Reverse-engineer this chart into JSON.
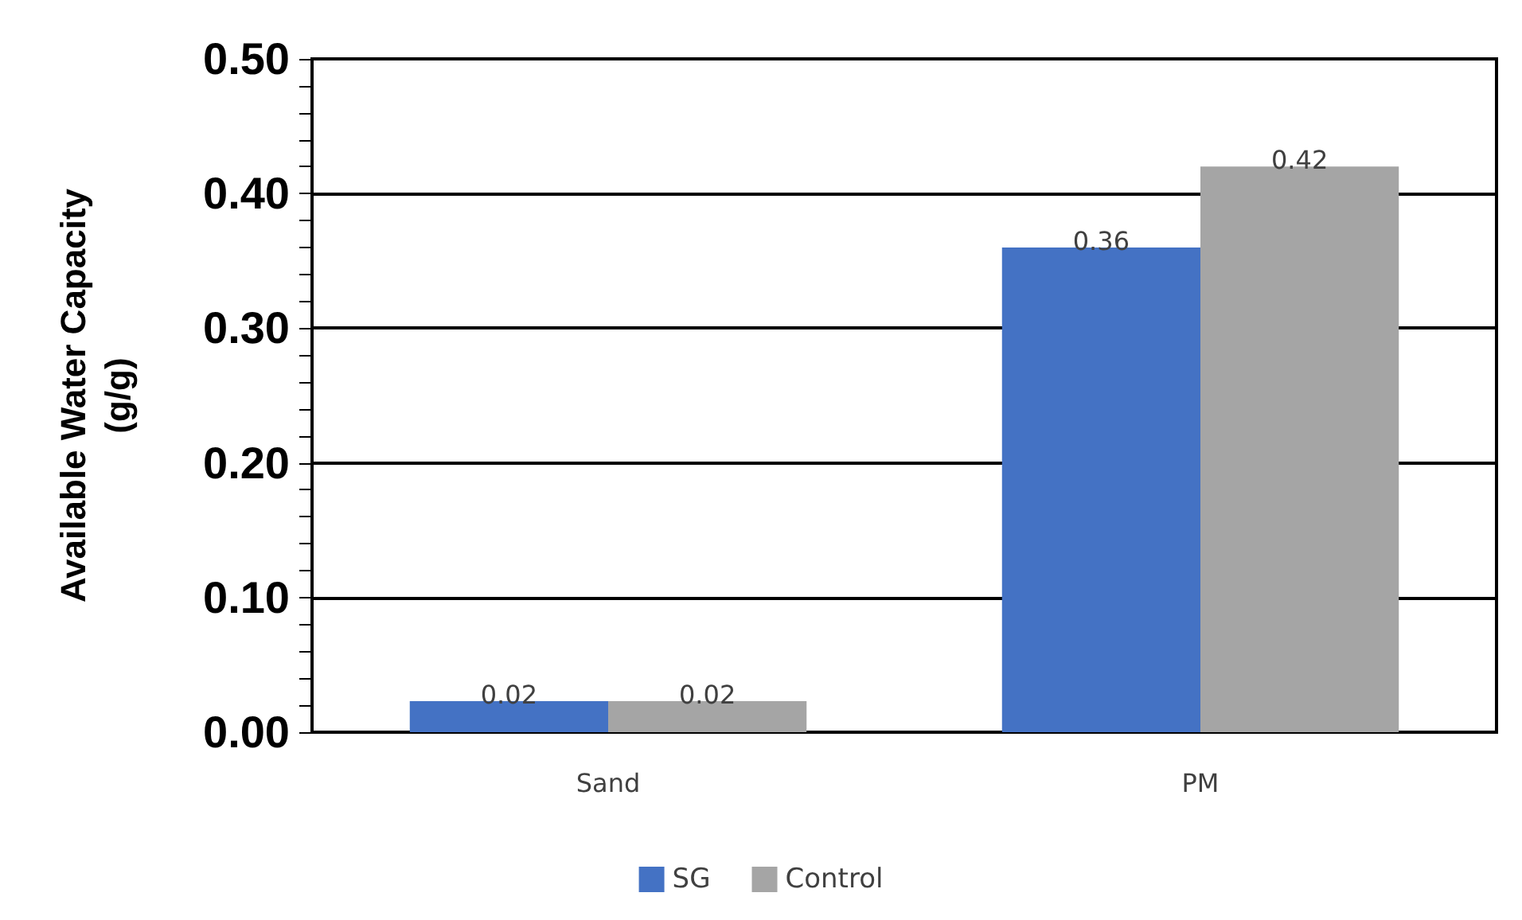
{
  "chart_data": {
    "type": "bar",
    "ylabel": "Available Water Capacity\n(g/g)",
    "categories": [
      "Sand",
      "PM"
    ],
    "series": [
      {
        "name": "SG",
        "color": "#4472c4",
        "values": [
          0.023,
          0.36
        ],
        "value_labels": [
          "0.02",
          "0.36"
        ]
      },
      {
        "name": "Control",
        "color": "#a5a5a5",
        "values": [
          0.023,
          0.42
        ],
        "value_labels": [
          "0.02",
          "0.42"
        ]
      }
    ],
    "ylim": [
      0,
      0.5
    ],
    "yticks": [
      {
        "value": 0,
        "label": "0.00"
      },
      {
        "value": 0.02,
        "label": null
      },
      {
        "value": 0.04,
        "label": null
      },
      {
        "value": 0.06,
        "label": null
      },
      {
        "value": 0.08,
        "label": null
      },
      {
        "value": 0.1,
        "label": "0.10"
      },
      {
        "value": 0.12,
        "label": null
      },
      {
        "value": 0.14,
        "label": null
      },
      {
        "value": 0.16,
        "label": null
      },
      {
        "value": 0.18,
        "label": null
      },
      {
        "value": 0.2,
        "label": "0.20"
      },
      {
        "value": 0.22,
        "label": null
      },
      {
        "value": 0.24,
        "label": null
      },
      {
        "value": 0.26,
        "label": null
      },
      {
        "value": 0.28,
        "label": null
      },
      {
        "value": 0.3,
        "label": "0.30"
      },
      {
        "value": 0.32,
        "label": null
      },
      {
        "value": 0.34,
        "label": null
      },
      {
        "value": 0.36,
        "label": null
      },
      {
        "value": 0.38,
        "label": null
      },
      {
        "value": 0.4,
        "label": "0.40"
      },
      {
        "value": 0.42,
        "label": null
      },
      {
        "value": 0.44,
        "label": null
      },
      {
        "value": 0.46,
        "label": null
      },
      {
        "value": 0.48,
        "label": null
      },
      {
        "value": 0.5,
        "label": "0.50"
      }
    ],
    "grid": "y",
    "legend": "bottom"
  }
}
